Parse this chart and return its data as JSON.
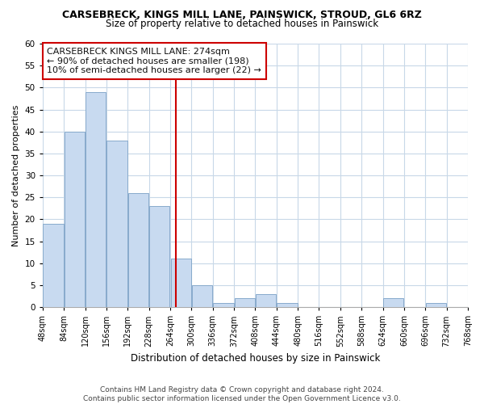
{
  "title": "CARSEBRECK, KINGS MILL LANE, PAINSWICK, STROUD, GL6 6RZ",
  "subtitle": "Size of property relative to detached houses in Painswick",
  "xlabel": "Distribution of detached houses by size in Painswick",
  "ylabel": "Number of detached properties",
  "bar_color": "#c8daf0",
  "bar_edge_color": "#88aacc",
  "bin_edges": [
    48,
    84,
    120,
    156,
    192,
    228,
    264,
    300,
    336,
    372,
    408,
    444,
    480,
    516,
    552,
    588,
    624,
    660,
    696,
    732,
    768
  ],
  "bar_heights": [
    19,
    40,
    49,
    38,
    26,
    23,
    11,
    5,
    1,
    2,
    3,
    1,
    0,
    0,
    0,
    0,
    2,
    0,
    1,
    0
  ],
  "tick_labels": [
    "48sqm",
    "84sqm",
    "120sqm",
    "156sqm",
    "192sqm",
    "228sqm",
    "264sqm",
    "300sqm",
    "336sqm",
    "372sqm",
    "408sqm",
    "444sqm",
    "480sqm",
    "516sqm",
    "552sqm",
    "588sqm",
    "624sqm",
    "660sqm",
    "696sqm",
    "732sqm",
    "768sqm"
  ],
  "vline_x": 274,
  "vline_color": "#cc0000",
  "annotation_line1": "CARSEBRECK KINGS MILL LANE: 274sqm",
  "annotation_line2": "← 90% of detached houses are smaller (198)",
  "annotation_line3": "10% of semi-detached houses are larger (22) →",
  "annotation_box_color": "#ffffff",
  "annotation_box_edge": "#cc0000",
  "ylim": [
    0,
    60
  ],
  "yticks": [
    0,
    5,
    10,
    15,
    20,
    25,
    30,
    35,
    40,
    45,
    50,
    55,
    60
  ],
  "footer_line1": "Contains HM Land Registry data © Crown copyright and database right 2024.",
  "footer_line2": "Contains public sector information licensed under the Open Government Licence v3.0.",
  "background_color": "#ffffff",
  "grid_color": "#c8d8e8",
  "title_fontsize": 9,
  "subtitle_fontsize": 8.5,
  "ylabel_fontsize": 8,
  "xlabel_fontsize": 8.5,
  "tick_fontsize": 7,
  "ytick_fontsize": 7.5,
  "ann_fontsize": 8,
  "footer_fontsize": 6.5
}
